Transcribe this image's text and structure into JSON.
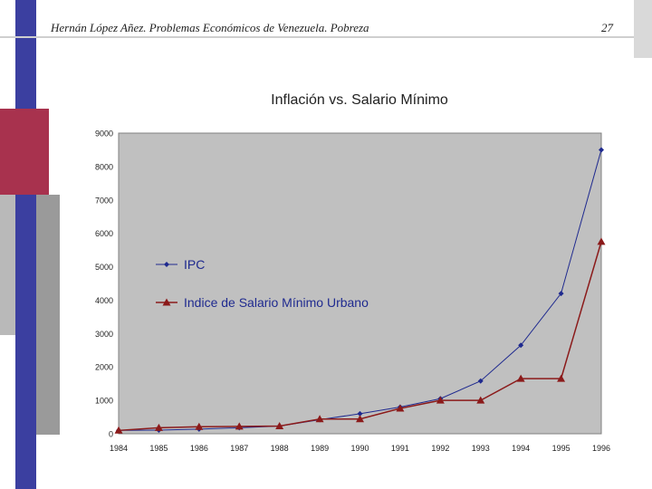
{
  "slide": {
    "header": "Hernán López Añez. Problemas Económicos de Venezuela. Pobreza",
    "page_number": "27"
  },
  "colors": {
    "blue_bar": "#3b3fa0",
    "red_bar": "#a8324e",
    "gray_bar": "#9a9a9a",
    "plot_bg": "#c0c0c0",
    "ipc": "#1f2a8f",
    "salario": "#8b1a1a"
  },
  "chart_data": {
    "type": "line",
    "title": "Inflación vs. Salario Mínimo",
    "xlabel": "",
    "ylabel": "",
    "categories": [
      "1984",
      "1985",
      "1986",
      "1987",
      "1988",
      "1989",
      "1990",
      "1991",
      "1992",
      "1993",
      "1994",
      "1995",
      "1996"
    ],
    "ylim": [
      0,
      9000
    ],
    "yticks": [
      0,
      1000,
      2000,
      3000,
      4000,
      5000,
      6000,
      7000,
      8000,
      9000
    ],
    "grid": false,
    "legend_position": "left-center",
    "series": [
      {
        "name": "IPC",
        "marker": "diamond",
        "values": [
          100,
          110,
          140,
          180,
          230,
          420,
          600,
          800,
          1050,
          1580,
          2650,
          4200,
          8500
        ]
      },
      {
        "name": "Indice de Salario Mínimo Urbano",
        "marker": "triangle",
        "values": [
          100,
          180,
          210,
          220,
          230,
          440,
          440,
          760,
          1000,
          1000,
          1650,
          1650,
          5750
        ]
      }
    ]
  }
}
